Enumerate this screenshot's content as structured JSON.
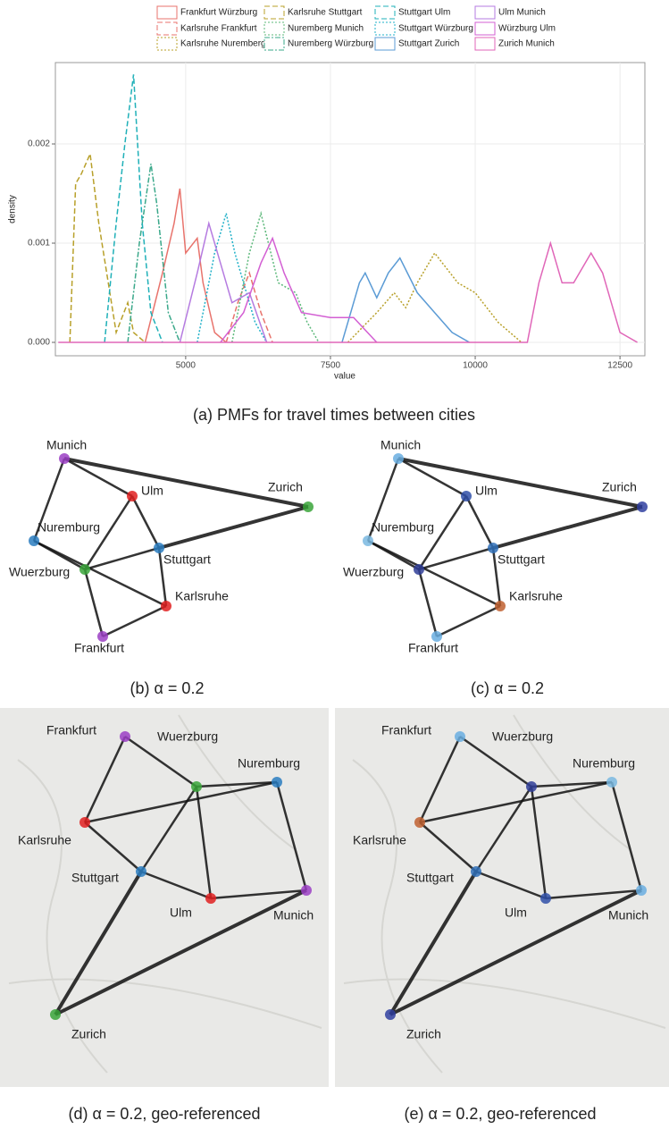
{
  "chart_data": {
    "type": "line",
    "x_label": "value",
    "y_label": "density",
    "xlim": [
      2750,
      12930
    ],
    "ylim": [
      -0.000135,
      0.00282
    ],
    "xticks": [
      5000,
      7500,
      10000,
      12500
    ],
    "yticks": [
      {
        "value": 0,
        "label": "0.000"
      },
      0.001,
      0.002
    ],
    "grid": true,
    "series": [
      {
        "name": "Frankfurt Würzburg",
        "color": "#e8736c",
        "dash": "solid",
        "x": [
          4300,
          4600,
          4800,
          4900,
          5000,
          5200,
          5300,
          5500,
          5700
        ],
        "values": [
          0,
          0.0007,
          0.0012,
          0.00155,
          0.0009,
          0.00105,
          0.0006,
          0.0001,
          0
        ]
      },
      {
        "name": "Karlsruhe Frankfurt",
        "color": "#e8736c",
        "dash": "dashed",
        "x": [
          5700,
          5900,
          6100,
          6300,
          6500
        ],
        "values": [
          0,
          0.0004,
          0.0007,
          0.0003,
          0
        ]
      },
      {
        "name": "Karlsruhe Nuremberg",
        "color": "#b8a02a",
        "dash": "dotted",
        "x": [
          7800,
          8300,
          8600,
          8800,
          9000,
          9300,
          9700,
          10000,
          10400,
          10800
        ],
        "values": [
          0,
          0.0003,
          0.0005,
          0.00035,
          0.0006,
          0.0009,
          0.0006,
          0.0005,
          0.0002,
          0
        ]
      },
      {
        "name": "Karlsruhe Stuttgart",
        "color": "#b8a02a",
        "dash": "dashed",
        "x": [
          3000,
          3100,
          3200,
          3350,
          3500,
          3800,
          4000,
          4100,
          4300
        ],
        "values": [
          0,
          0.0016,
          0.0017,
          0.0019,
          0.0012,
          0.0001,
          0.0004,
          0.0001,
          0
        ]
      },
      {
        "name": "Nuremberg Munich",
        "color": "#5cb87a",
        "dash": "dotted",
        "x": [
          5800,
          6100,
          6300,
          6600,
          6900,
          7100,
          7300
        ],
        "values": [
          0,
          0.0009,
          0.0013,
          0.0006,
          0.0005,
          0.0002,
          0
        ]
      },
      {
        "name": "Nuremberg Würzburg",
        "color": "#3aa88a",
        "dash": "dashdot",
        "x": [
          4000,
          4200,
          4400,
          4500,
          4700,
          4900
        ],
        "values": [
          0,
          0.001,
          0.0018,
          0.0014,
          0.0003,
          0
        ]
      },
      {
        "name": "Stuttgart Ulm",
        "color": "#1fb0b8",
        "dash": "dashed",
        "x": [
          3600,
          3800,
          3950,
          4100,
          4250,
          4400,
          4600
        ],
        "values": [
          0,
          0.0012,
          0.002,
          0.0027,
          0.0012,
          0.0003,
          0
        ]
      },
      {
        "name": "Stuttgart Würzburg",
        "color": "#1fb0c8",
        "dash": "dotted",
        "x": [
          5200,
          5500,
          5700,
          5850,
          6000,
          6200,
          6400
        ],
        "values": [
          0,
          0.0009,
          0.0013,
          0.0009,
          0.0006,
          0.0002,
          0
        ]
      },
      {
        "name": "Stuttgart Zurich",
        "color": "#5b9bd5",
        "dash": "solid",
        "x": [
          7700,
          8000,
          8100,
          8300,
          8500,
          8700,
          9000,
          9300,
          9600,
          9900
        ],
        "values": [
          0,
          0.0006,
          0.0007,
          0.00045,
          0.0007,
          0.00085,
          0.0005,
          0.0003,
          0.0001,
          0
        ]
      },
      {
        "name": "Ulm Munich",
        "color": "#b57be0",
        "dash": "solid",
        "x": [
          4900,
          5200,
          5400,
          5600,
          5800,
          6100,
          6400
        ],
        "values": [
          0,
          0.0007,
          0.0012,
          0.0008,
          0.0004,
          0.0005,
          0
        ]
      },
      {
        "name": "Würzburg Ulm",
        "color": "#d35fd3",
        "dash": "solid",
        "x": [
          5600,
          6000,
          6300,
          6500,
          6700,
          7000,
          7500,
          7900,
          8300
        ],
        "values": [
          0,
          0.0003,
          0.0008,
          0.00105,
          0.0007,
          0.0003,
          0.00025,
          0.00025,
          0
        ]
      },
      {
        "name": "Zurich Munich",
        "color": "#e066b8",
        "dash": "solid",
        "x": [
          2800,
          10900,
          11100,
          11300,
          11500,
          11700,
          12000,
          12200,
          12500,
          12800
        ],
        "values": [
          0,
          0,
          0.0006,
          0.001,
          0.0006,
          0.0006,
          0.0009,
          0.0007,
          0.0001,
          0
        ]
      }
    ],
    "caption": "(a) PMFs for travel times between cities"
  },
  "panels": [
    {
      "caption": "(b) α = 0.2",
      "nodes": [
        {
          "label": "Munich",
          "color": "#9b3fc4"
        },
        {
          "label": "Zurich",
          "color": "#3aa53a"
        },
        {
          "label": "Ulm",
          "color": "#e02020"
        },
        {
          "label": "Nuremburg",
          "color": "#2a7cc0"
        },
        {
          "label": "Stuttgart",
          "color": "#2a7cc0"
        },
        {
          "label": "Wuerzburg",
          "color": "#3aa53a"
        },
        {
          "label": "Karlsruhe",
          "color": "#e02020"
        },
        {
          "label": "Frankfurt",
          "color": "#9b3fc4"
        }
      ]
    },
    {
      "caption": "(c) α = 0.2",
      "nodes": [
        {
          "label": "Munich",
          "color": "#6aaee0"
        },
        {
          "label": "Zurich",
          "color": "#3040a0"
        },
        {
          "label": "Ulm",
          "color": "#3050a8"
        },
        {
          "label": "Nuremburg",
          "color": "#7ab8e0"
        },
        {
          "label": "Stuttgart",
          "color": "#3070b8"
        },
        {
          "label": "Wuerzburg",
          "color": "#303e98"
        },
        {
          "label": "Karlsruhe",
          "color": "#c06030"
        },
        {
          "label": "Frankfurt",
          "color": "#6aaee0"
        }
      ]
    },
    {
      "caption": "(d) α = 0.2, geo-referenced",
      "nodes": [
        {
          "label": "Munich",
          "color": "#9b3fc4"
        },
        {
          "label": "Zurich",
          "color": "#3aa53a"
        },
        {
          "label": "Ulm",
          "color": "#e02020"
        },
        {
          "label": "Nuremburg",
          "color": "#2a7cc0"
        },
        {
          "label": "Stuttgart",
          "color": "#2a7cc0"
        },
        {
          "label": "Wuerzburg",
          "color": "#3aa53a"
        },
        {
          "label": "Karlsruhe",
          "color": "#e02020"
        },
        {
          "label": "Frankfurt",
          "color": "#9b3fc4"
        }
      ]
    },
    {
      "caption": "(e) α = 0.2, geo-referenced",
      "nodes": [
        {
          "label": "Munich",
          "color": "#6aaee0"
        },
        {
          "label": "Zurich",
          "color": "#3040a0"
        },
        {
          "label": "Ulm",
          "color": "#3050a8"
        },
        {
          "label": "Nuremburg",
          "color": "#7ab8e0"
        },
        {
          "label": "Stuttgart",
          "color": "#3070b8"
        },
        {
          "label": "Wuerzburg",
          "color": "#303e98"
        },
        {
          "label": "Karlsruhe",
          "color": "#c06030"
        },
        {
          "label": "Frankfurt",
          "color": "#6aaee0"
        }
      ]
    }
  ]
}
